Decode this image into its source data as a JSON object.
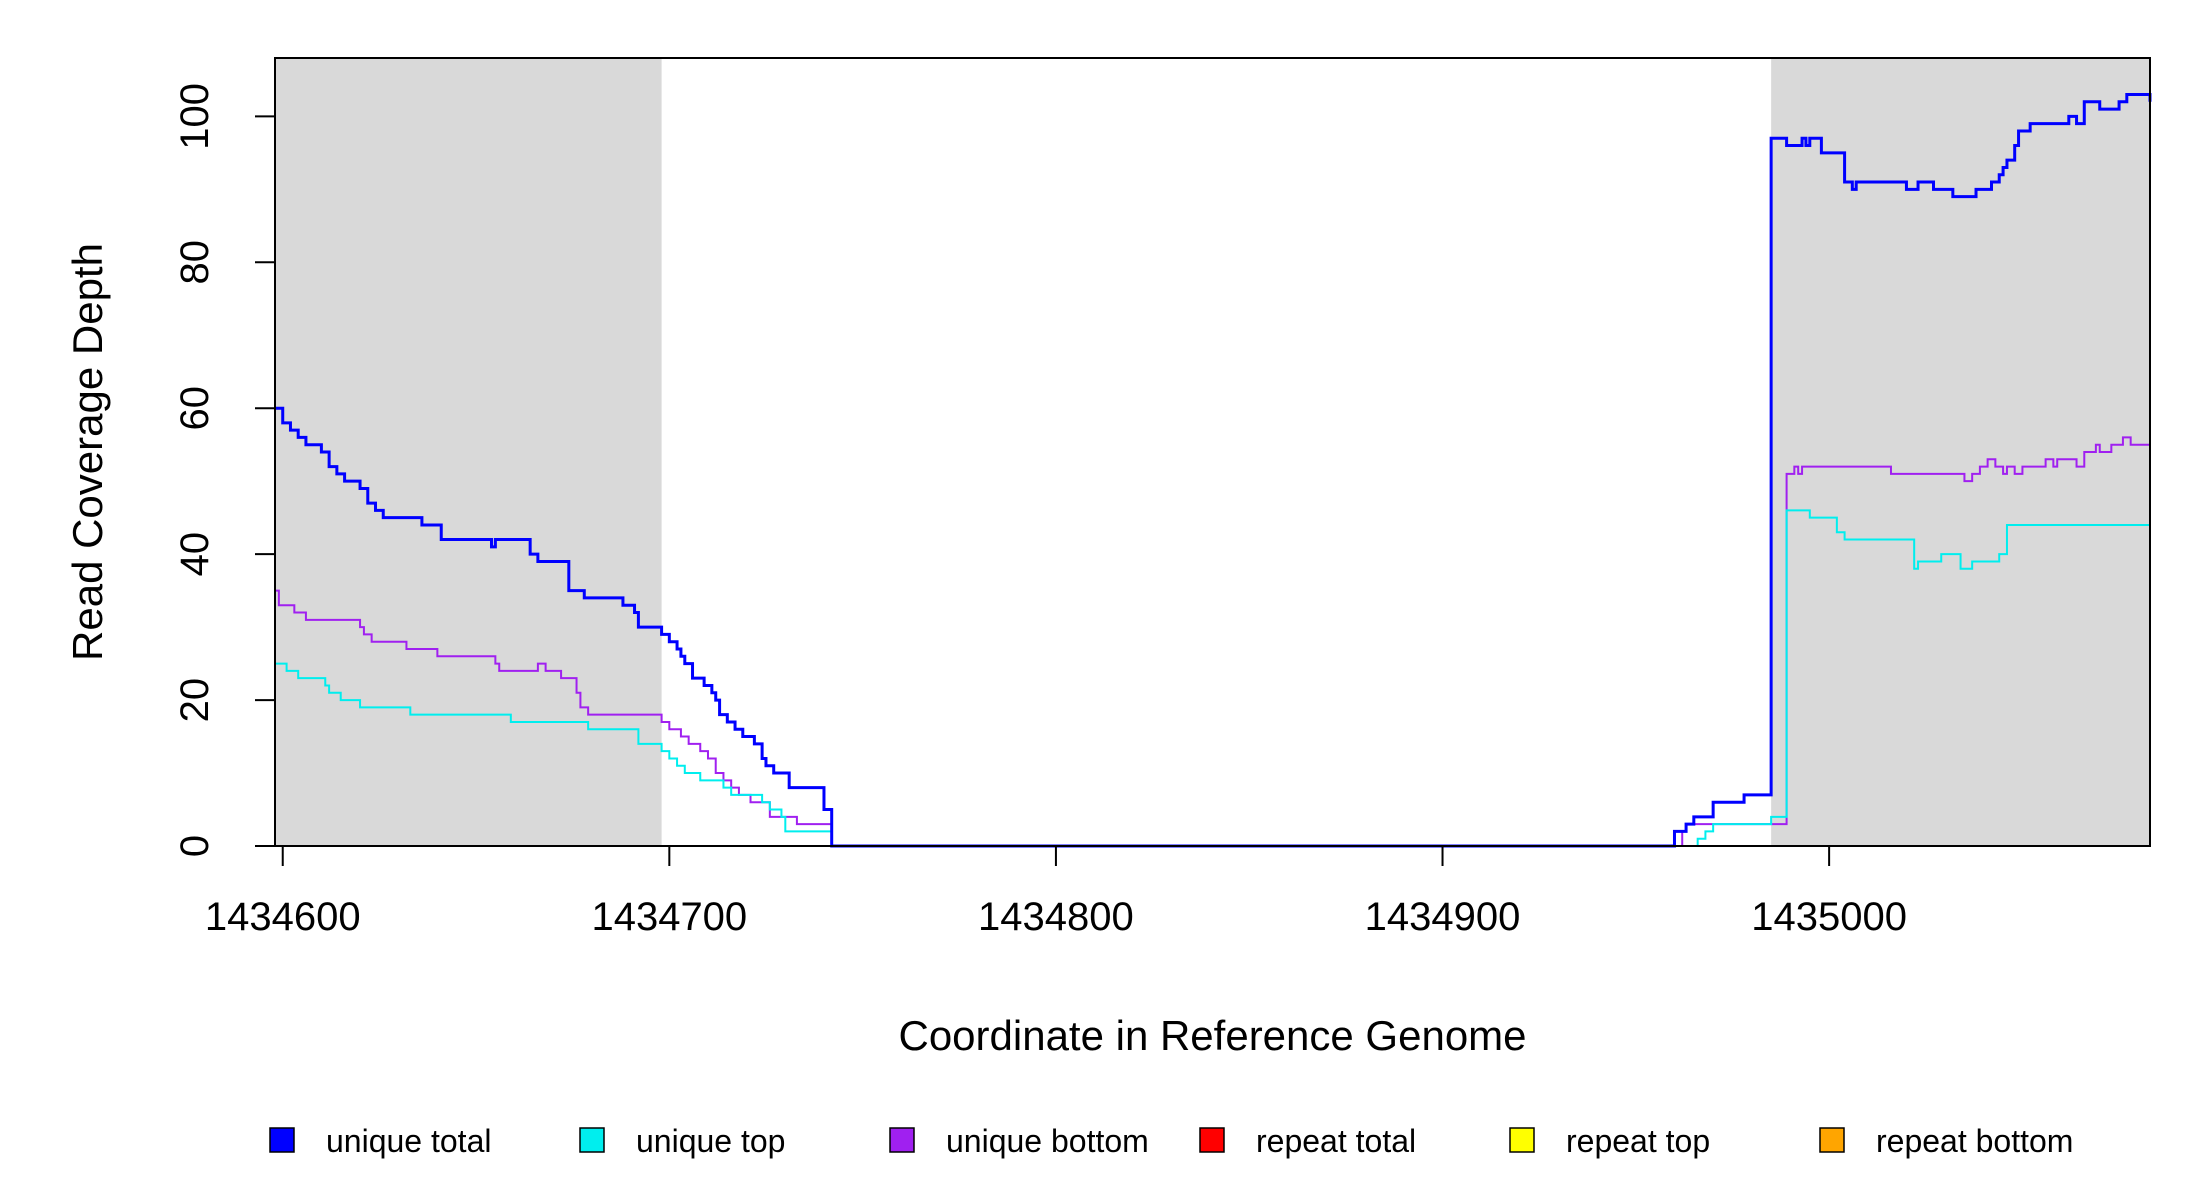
{
  "chart_data": {
    "type": "line",
    "title": "",
    "xlabel": "Coordinate in Reference Genome",
    "ylabel": "Read Coverage Depth",
    "xlim": [
      1434598,
      1435083
    ],
    "ylim": [
      0,
      108
    ],
    "x_ticks": [
      1434600,
      1434700,
      1434800,
      1434900,
      1435000
    ],
    "x_tick_labels": [
      "1434600",
      "1434700",
      "1434800",
      "1434900",
      "1435000"
    ],
    "y_ticks": [
      0,
      20,
      40,
      60,
      80,
      100
    ],
    "y_tick_labels": [
      "0",
      "20",
      "40",
      "60",
      "80",
      "100"
    ],
    "shaded_regions": [
      [
        1434598,
        1434698
      ],
      [
        1434985,
        1435083
      ]
    ],
    "shade_color": "#d9d9d9",
    "step": true,
    "legend": {
      "position": "bottom",
      "entries": [
        {
          "label": "unique total",
          "color": "#0000ff"
        },
        {
          "label": "unique top",
          "color": "#00eeee"
        },
        {
          "label": "unique bottom",
          "color": "#a020f0"
        },
        {
          "label": "repeat total",
          "color": "#ff0000"
        },
        {
          "label": "repeat top",
          "color": "#ffff00"
        },
        {
          "label": "repeat bottom",
          "color": "#ffa500"
        }
      ]
    },
    "series": [
      {
        "name": "unique total",
        "color": "#0000ff",
        "width": 3,
        "x": [
          1434598,
          1434600,
          1434602,
          1434604,
          1434606,
          1434610,
          1434612,
          1434614,
          1434616,
          1434618,
          1434620,
          1434622,
          1434624,
          1434626,
          1434630,
          1434636,
          1434641,
          1434654,
          1434655,
          1434656,
          1434664,
          1434666,
          1434670,
          1434674,
          1434678,
          1434679,
          1434680,
          1434688,
          1434691,
          1434692,
          1434698,
          1434700,
          1434702,
          1434703,
          1434704,
          1434706,
          1434709,
          1434711,
          1434712,
          1434713,
          1434715,
          1434717,
          1434719,
          1434722,
          1434724,
          1434725,
          1434727,
          1434731,
          1434740,
          1434742,
          1434956,
          1434960,
          1434963,
          1434964,
          1434965,
          1434967,
          1434970,
          1434974,
          1434978,
          1434985,
          1434989,
          1434992,
          1434993,
          1434994,
          1434995,
          1434998,
          1435004,
          1435006,
          1435007,
          1435016,
          1435020,
          1435021,
          1435023,
          1435027,
          1435032,
          1435038,
          1435040,
          1435042,
          1435043,
          1435044,
          1435045,
          1435046,
          1435048,
          1435049,
          1435052,
          1435058,
          1435062,
          1435064,
          1435066,
          1435070,
          1435072,
          1435075,
          1435077,
          1435080,
          1435083
        ],
        "y": [
          60,
          58,
          57,
          56,
          55,
          54,
          52,
          51,
          50,
          50,
          49,
          47,
          46,
          45,
          45,
          44,
          42,
          41,
          42,
          42,
          40,
          39,
          39,
          35,
          34,
          34,
          34,
          33,
          32,
          30,
          29,
          28,
          27,
          26,
          25,
          23,
          22,
          21,
          20,
          18,
          17,
          16,
          15,
          14,
          12,
          11,
          10,
          8,
          5,
          0,
          0,
          2,
          3,
          3,
          4,
          4,
          6,
          6,
          7,
          97,
          96,
          96,
          97,
          96,
          97,
          95,
          91,
          90,
          91,
          91,
          90,
          90,
          91,
          90,
          89,
          90,
          90,
          91,
          91,
          92,
          93,
          94,
          96,
          98,
          99,
          99,
          100,
          99,
          102,
          101,
          101,
          102,
          103,
          103,
          102
        ]
      },
      {
        "name": "unique bottom",
        "color": "#a020f0",
        "width": 2,
        "x": [
          1434598,
          1434599,
          1434600,
          1434603,
          1434604,
          1434606,
          1434619,
          1434620,
          1434621,
          1434623,
          1434632,
          1434636,
          1434640,
          1434655,
          1434656,
          1434666,
          1434668,
          1434672,
          1434675,
          1434676,
          1434677,
          1434679,
          1434682,
          1434698,
          1434700,
          1434703,
          1434705,
          1434708,
          1434710,
          1434712,
          1434714,
          1434716,
          1434718,
          1434721,
          1434726,
          1434733,
          1434742,
          1434956,
          1434962,
          1434963,
          1434966,
          1434985,
          1434989,
          1434990,
          1434991,
          1434992,
          1434993,
          1434995,
          1435011,
          1435016,
          1435023,
          1435033,
          1435035,
          1435037,
          1435039,
          1435041,
          1435043,
          1435045,
          1435046,
          1435048,
          1435050,
          1435055,
          1435056,
          1435058,
          1435059,
          1435064,
          1435066,
          1435069,
          1435070,
          1435073,
          1435076,
          1435078,
          1435083
        ],
        "y": [
          35,
          33,
          33,
          32,
          32,
          31,
          31,
          30,
          29,
          28,
          27,
          27,
          26,
          25,
          24,
          25,
          24,
          23,
          23,
          21,
          19,
          18,
          18,
          17,
          16,
          15,
          14,
          13,
          12,
          10,
          9,
          8,
          7,
          6,
          4,
          3,
          0,
          0,
          2,
          3,
          3,
          3,
          51,
          51,
          52,
          51,
          52,
          52,
          52,
          51,
          51,
          51,
          50,
          51,
          52,
          53,
          52,
          51,
          52,
          51,
          52,
          52,
          53,
          52,
          53,
          52,
          54,
          55,
          54,
          55,
          56,
          55,
          54
        ]
      },
      {
        "name": "unique top",
        "color": "#00eeee",
        "width": 2,
        "x": [
          1434598,
          1434601,
          1434604,
          1434607,
          1434611,
          1434612,
          1434613,
          1434615,
          1434620,
          1434633,
          1434659,
          1434679,
          1434680,
          1434691,
          1434692,
          1434698,
          1434700,
          1434702,
          1434704,
          1434708,
          1434714,
          1434716,
          1434719,
          1434724,
          1434726,
          1434729,
          1434730,
          1434741,
          1434742,
          1434964,
          1434966,
          1434967,
          1434968,
          1434970,
          1434985,
          1434989,
          1434995,
          1435000,
          1435002,
          1435004,
          1435022,
          1435023,
          1435027,
          1435029,
          1435034,
          1435037,
          1435044,
          1435046,
          1435083
        ],
        "y": [
          25,
          24,
          23,
          23,
          22,
          21,
          21,
          20,
          19,
          18,
          17,
          16,
          16,
          16,
          14,
          13,
          12,
          11,
          10,
          9,
          8,
          7,
          7,
          6,
          5,
          4,
          2,
          2,
          0,
          0,
          1,
          1,
          2,
          3,
          4,
          46,
          45,
          45,
          43,
          42,
          38,
          39,
          39,
          40,
          38,
          39,
          40,
          44,
          47
        ]
      },
      {
        "name": "repeat total",
        "color": "#ff0000",
        "width": 2,
        "x": [
          1434598,
          1435083
        ],
        "y": [
          0,
          0
        ]
      },
      {
        "name": "repeat top",
        "color": "#ffff00",
        "width": 2,
        "x": [
          1434598,
          1435083
        ],
        "y": [
          0,
          0
        ]
      },
      {
        "name": "repeat bottom",
        "color": "#ffa500",
        "width": 2,
        "x": [
          1434598,
          1435083
        ],
        "y": [
          0,
          0
        ]
      }
    ]
  }
}
